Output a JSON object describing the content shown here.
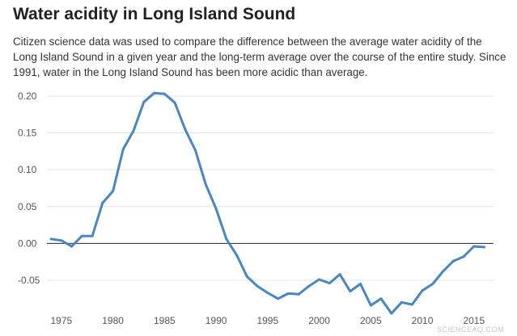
{
  "header": {
    "title": "Water acidity in Long Island Sound",
    "subtitle": "Citizen science data was used to compare the difference between the average water acidity of the Long Island Sound in a given year and the long-term average over the course of the entire study. Since 1991, water in the Long Island Sound has been more acidic than average."
  },
  "watermark": "SCIENCEAQ.COM",
  "colors": {
    "line": "#4a86c0",
    "zero_line": "#222222",
    "grid": "#e3e3e3"
  },
  "chart_data": {
    "type": "line",
    "title": "Water acidity in Long Island Sound",
    "xlabel": "",
    "ylabel": "",
    "xlim": [
      1973.6,
      2016.9
    ],
    "ylim": [
      -0.095,
      0.212
    ],
    "grid": true,
    "legend": "none",
    "x_ticks": [
      1975,
      1980,
      1985,
      1990,
      1995,
      2000,
      2005,
      2010,
      2015
    ],
    "y_ticks": [
      {
        "value": 0.2,
        "label": "0.20"
      },
      {
        "value": 0.15,
        "label": "0.15"
      },
      {
        "value": 0.1,
        "label": "0.10"
      },
      {
        "value": 0.05,
        "label": "0.05"
      },
      {
        "value": 0.0,
        "label": "0.00"
      },
      {
        "value": -0.05,
        "label": "-0.05"
      }
    ],
    "series": [
      {
        "x": [
          1974,
          1975,
          1976,
          1977,
          1978,
          1979,
          1980,
          1981,
          1982,
          1983,
          1984,
          1985,
          1986,
          1987,
          1988,
          1989,
          1990,
          1991,
          1992,
          1993,
          1994,
          1995,
          1996,
          1997,
          1998,
          1999,
          2000,
          2001,
          2002,
          2003,
          2004,
          2005,
          2006,
          2007,
          2008,
          2009,
          2010,
          2011,
          2012,
          2013,
          2014,
          2015,
          2016
        ],
        "values": [
          0.006,
          0.004,
          -0.004,
          0.01,
          0.01,
          0.055,
          0.071,
          0.128,
          0.153,
          0.192,
          0.204,
          0.203,
          0.191,
          0.155,
          0.126,
          0.08,
          0.047,
          0.006,
          -0.016,
          -0.045,
          -0.058,
          -0.067,
          -0.075,
          -0.068,
          -0.069,
          -0.058,
          -0.049,
          -0.054,
          -0.042,
          -0.065,
          -0.055,
          -0.084,
          -0.075,
          -0.095,
          -0.08,
          -0.083,
          -0.064,
          -0.055,
          -0.038,
          -0.024,
          -0.018,
          -0.004,
          -0.005
        ]
      }
    ]
  }
}
